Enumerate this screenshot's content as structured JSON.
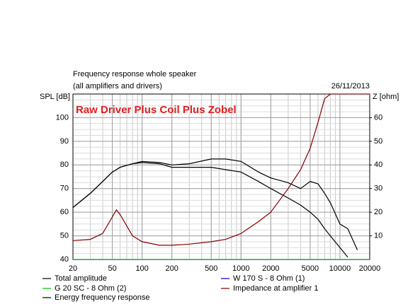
{
  "chart_data": {
    "type": "line",
    "title": "Frequency response whole speaker",
    "subtitle": "(all amplifiers and drivers)",
    "date": "26/11/2013",
    "annotation": "Raw Driver Plus Coil Plus Zobel",
    "y_label": "SPL [dB]",
    "y2_label": "Z [ohm]",
    "log_x": true,
    "grid": true,
    "x": [
      20,
      30,
      40,
      50,
      55,
      60,
      80,
      100,
      150,
      200,
      300,
      500,
      700,
      1000,
      1500,
      2000,
      3000,
      4000,
      5000,
      6000,
      7000,
      8000,
      10000,
      12000,
      15000,
      20000
    ],
    "xlim": [
      20,
      20000
    ],
    "xticks": [
      20,
      50,
      100,
      200,
      500,
      1000,
      2000,
      5000,
      10000,
      20000
    ],
    "ylim": [
      40,
      110
    ],
    "yticks": [
      40,
      50,
      60,
      70,
      80,
      90,
      100
    ],
    "y2lim": [
      0,
      70
    ],
    "y2ticks": [
      10,
      20,
      30,
      40,
      50,
      60
    ],
    "series": [
      {
        "name": "Total amplitude",
        "color": "#000000",
        "values": [
          62,
          68,
          73,
          77,
          78,
          79,
          80.5,
          81.5,
          81,
          80,
          80.5,
          82.5,
          82.5,
          81.5,
          77,
          74.5,
          72.5,
          70,
          73,
          72,
          68,
          64,
          55,
          53,
          44,
          null
        ]
      },
      {
        "name": "G 20 SC - 8 Ohm (2)",
        "color": "#00c000",
        "values": [
          40,
          40,
          40,
          40,
          40,
          40,
          40,
          40,
          40,
          40,
          40,
          40,
          40,
          40,
          40,
          40,
          40,
          40,
          40,
          40,
          40,
          40,
          40,
          40,
          40,
          40
        ]
      },
      {
        "name": "Energy frequency response",
        "color": "#000000",
        "values": [
          62,
          68,
          73,
          77,
          78,
          79,
          80.5,
          81,
          80.5,
          79,
          79,
          79,
          78,
          77,
          73,
          70,
          66,
          63,
          60,
          57,
          53,
          50,
          45,
          41,
          null,
          null
        ]
      },
      {
        "name": "W 170 S - 8 Ohm (1)",
        "color": "#0000c0",
        "values": [
          null,
          null,
          null,
          null,
          null,
          null,
          null,
          null,
          null,
          null,
          null,
          null,
          null,
          null,
          null,
          null,
          null,
          null,
          null,
          null,
          null,
          null,
          null,
          null,
          null,
          null
        ]
      },
      {
        "name": "Impedance at amplifier 1",
        "color": "#800000",
        "axis": "y2",
        "values": [
          8,
          8.5,
          11,
          18,
          21,
          19,
          10,
          7.5,
          6,
          6,
          6.5,
          7.5,
          8.5,
          11,
          16,
          20,
          30,
          38,
          47,
          58,
          68,
          70,
          70,
          70,
          70,
          70
        ]
      }
    ]
  }
}
